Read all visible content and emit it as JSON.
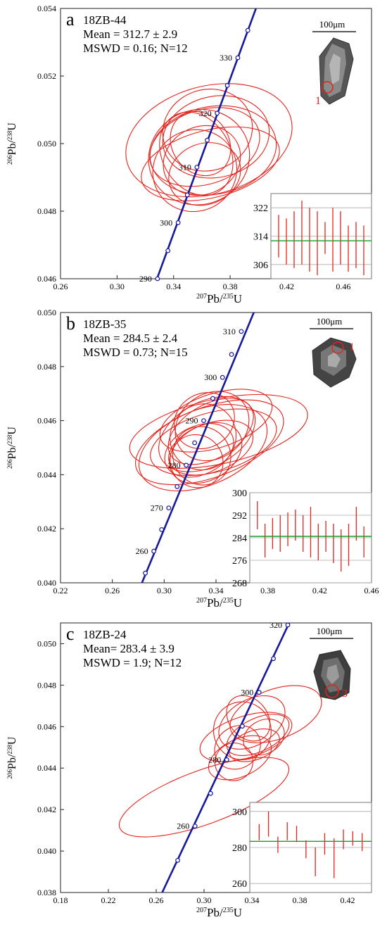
{
  "chart_data": [
    {
      "type": "scatter",
      "panel_letter": "a",
      "sample": "18ZB-44",
      "mean_text": "Mean = 312.7 ± 2.9",
      "mswd_text": "MSWD = 0.16; N=12",
      "xlabel_sup": "207",
      "xlabel_base": "Pb/",
      "xlabel_sup2": "235",
      "xlabel_end": "U",
      "ylabel_sup": "206",
      "ylabel_base": "Pb/",
      "ylabel_sup2": "238",
      "ylabel_end": "U",
      "xlim": [
        0.26,
        0.48
      ],
      "ylim": [
        0.046,
        0.054
      ],
      "xticks": [
        "0.26",
        "0.30",
        "0.34",
        "0.38",
        "0.42",
        "0.46"
      ],
      "xtick_values": [
        0.26,
        0.3,
        0.34,
        0.38,
        0.42,
        0.46
      ],
      "yticks": [
        "0.046",
        "0.048",
        "0.050",
        "0.052",
        "0.054"
      ],
      "ytick_values": [
        0.046,
        0.048,
        0.05,
        0.052,
        0.054
      ],
      "concordia_labels": [
        {
          "age": "290",
          "x": 0.3286,
          "y": 0.046
        },
        {
          "age": "300",
          "x": 0.3432,
          "y": 0.04766
        },
        {
          "age": "310",
          "x": 0.3565,
          "y": 0.0493
        },
        {
          "age": "320",
          "x": 0.3708,
          "y": 0.0509
        },
        {
          "age": "330",
          "x": 0.3854,
          "y": 0.05254
        }
      ],
      "concordia_points": [
        [
          0.3286,
          0.046
        ],
        [
          0.336,
          0.04683
        ],
        [
          0.3432,
          0.04766
        ],
        [
          0.3497,
          0.04848
        ],
        [
          0.3565,
          0.0493
        ],
        [
          0.3638,
          0.0501
        ],
        [
          0.3708,
          0.0509
        ],
        [
          0.378,
          0.05172
        ],
        [
          0.3854,
          0.05254
        ],
        [
          0.3925,
          0.05335
        ]
      ],
      "concordia_line": [
        [
          0.316,
          0.0446
        ],
        [
          0.4,
          0.0542
        ]
      ],
      "ellipses": [
        {
          "cx": 0.362,
          "cy": 0.0499,
          "rx": 0.04,
          "ry": 0.0011,
          "rot": -18
        },
        {
          "cx": 0.365,
          "cy": 0.0501,
          "rx": 0.06,
          "ry": 0.0016,
          "rot": -15
        },
        {
          "cx": 0.358,
          "cy": 0.0496,
          "rx": 0.036,
          "ry": 0.0014,
          "rot": -20
        },
        {
          "cx": 0.36,
          "cy": 0.0495,
          "rx": 0.028,
          "ry": 0.001,
          "rot": -25
        },
        {
          "cx": 0.37,
          "cy": 0.0502,
          "rx": 0.038,
          "ry": 0.0012,
          "rot": -12
        },
        {
          "cx": 0.355,
          "cy": 0.0492,
          "rx": 0.03,
          "ry": 0.0012,
          "rot": -28
        },
        {
          "cx": 0.368,
          "cy": 0.0498,
          "rx": 0.045,
          "ry": 0.0013,
          "rot": -10
        },
        {
          "cx": 0.362,
          "cy": 0.0491,
          "rx": 0.026,
          "ry": 0.0009,
          "rot": -22
        },
        {
          "cx": 0.356,
          "cy": 0.0497,
          "rx": 0.024,
          "ry": 0.0013,
          "rot": -30
        },
        {
          "cx": 0.364,
          "cy": 0.0504,
          "rx": 0.032,
          "ry": 0.0012,
          "rot": -18
        },
        {
          "cx": 0.359,
          "cy": 0.05,
          "rx": 0.02,
          "ry": 0.001,
          "rot": -35
        },
        {
          "cx": 0.366,
          "cy": 0.0494,
          "rx": 0.05,
          "ry": 0.001,
          "rot": -14
        }
      ],
      "scale_bar": "100μm",
      "spot_label": "1",
      "inset": {
        "yticks": [
          "322",
          "314",
          "306"
        ],
        "ytick_values": [
          322,
          314,
          306
        ],
        "ylim": [
          302,
          326
        ],
        "mean": 312.7,
        "bars": [
          [
            308,
            320
          ],
          [
            306,
            319
          ],
          [
            305,
            321
          ],
          [
            306,
            324
          ],
          [
            304,
            322
          ],
          [
            303,
            321
          ],
          [
            309,
            318
          ],
          [
            304,
            322
          ],
          [
            306,
            321
          ],
          [
            304,
            317
          ],
          [
            305,
            318
          ],
          [
            303,
            317
          ]
        ]
      }
    },
    {
      "type": "scatter",
      "panel_letter": "b",
      "sample": "18ZB-35",
      "mean_text": "Mean = 284.5 ± 2.4",
      "mswd_text": "MSWD = 0.73; N=15",
      "xlabel_sup": "207",
      "xlabel_base": "Pb/",
      "xlabel_sup2": "235",
      "xlabel_end": "U",
      "ylabel_sup": "206",
      "ylabel_base": "Pb/",
      "ylabel_sup2": "238",
      "ylabel_end": "U",
      "xlim": [
        0.22,
        0.46
      ],
      "ylim": [
        0.04,
        0.05
      ],
      "xticks": [
        "0.22",
        "0.26",
        "0.30",
        "0.34",
        "0.38",
        "0.42",
        "0.46"
      ],
      "xtick_values": [
        0.22,
        0.26,
        0.3,
        0.34,
        0.38,
        0.42,
        0.46
      ],
      "yticks": [
        "0.040",
        "0.042",
        "0.044",
        "0.046",
        "0.048",
        "0.050"
      ],
      "ytick_values": [
        0.04,
        0.042,
        0.044,
        0.046,
        0.048,
        0.05
      ],
      "concordia_labels": [
        {
          "age": "260",
          "x": 0.292,
          "y": 0.04117
        },
        {
          "age": "270",
          "x": 0.3035,
          "y": 0.04277
        },
        {
          "age": "280",
          "x": 0.317,
          "y": 0.04435
        },
        {
          "age": "290",
          "x": 0.3305,
          "y": 0.046
        },
        {
          "age": "300",
          "x": 0.345,
          "y": 0.0476
        },
        {
          "age": "310",
          "x": 0.3595,
          "y": 0.0493
        }
      ],
      "concordia_points": [
        [
          0.2855,
          0.04036
        ],
        [
          0.292,
          0.04117
        ],
        [
          0.298,
          0.04197
        ],
        [
          0.3035,
          0.04277
        ],
        [
          0.31,
          0.04356
        ],
        [
          0.317,
          0.04435
        ],
        [
          0.3235,
          0.04518
        ],
        [
          0.3305,
          0.046
        ],
        [
          0.3375,
          0.04682
        ],
        [
          0.345,
          0.0476
        ],
        [
          0.352,
          0.04845
        ],
        [
          0.3595,
          0.0493
        ]
      ],
      "concordia_line": [
        [
          0.282,
          0.0399
        ],
        [
          0.37,
          0.0501
        ]
      ],
      "ellipses": [
        {
          "cx": 0.335,
          "cy": 0.0452,
          "rx": 0.06,
          "ry": 0.0013,
          "rot": -20
        },
        {
          "cx": 0.33,
          "cy": 0.045,
          "rx": 0.052,
          "ry": 0.0014,
          "rot": -22
        },
        {
          "cx": 0.333,
          "cy": 0.0455,
          "rx": 0.04,
          "ry": 0.0012,
          "rot": -28
        },
        {
          "cx": 0.336,
          "cy": 0.0456,
          "rx": 0.036,
          "ry": 0.001,
          "rot": -30
        },
        {
          "cx": 0.332,
          "cy": 0.0448,
          "rx": 0.03,
          "ry": 0.001,
          "rot": -30
        },
        {
          "cx": 0.337,
          "cy": 0.0458,
          "rx": 0.03,
          "ry": 0.0012,
          "rot": -35
        },
        {
          "cx": 0.329,
          "cy": 0.0447,
          "rx": 0.022,
          "ry": 0.0011,
          "rot": -40
        },
        {
          "cx": 0.34,
          "cy": 0.046,
          "rx": 0.045,
          "ry": 0.001,
          "rot": -18
        },
        {
          "cx": 0.33,
          "cy": 0.0454,
          "rx": 0.026,
          "ry": 0.0012,
          "rot": -45
        },
        {
          "cx": 0.338,
          "cy": 0.0452,
          "rx": 0.05,
          "ry": 0.0011,
          "rot": -15
        },
        {
          "cx": 0.325,
          "cy": 0.0445,
          "rx": 0.02,
          "ry": 0.001,
          "rot": -45
        },
        {
          "cx": 0.342,
          "cy": 0.0456,
          "rx": 0.07,
          "ry": 0.0012,
          "rot": -12
        },
        {
          "cx": 0.331,
          "cy": 0.046,
          "rx": 0.024,
          "ry": 0.001,
          "rot": -30
        },
        {
          "cx": 0.336,
          "cy": 0.045,
          "rx": 0.034,
          "ry": 0.0009,
          "rot": -20
        },
        {
          "cx": 0.327,
          "cy": 0.0449,
          "rx": 0.028,
          "ry": 0.0009,
          "rot": -25
        }
      ],
      "scale_bar": "100μm",
      "spot_label": "1",
      "inset": {
        "yticks": [
          "300",
          "292",
          "284",
          "276",
          "268"
        ],
        "ytick_values": [
          300,
          292,
          284,
          276,
          268
        ],
        "ylim": [
          268,
          300
        ],
        "mean": 284.5,
        "bars": [
          [
            287,
            297
          ],
          [
            277,
            289
          ],
          [
            280,
            291
          ],
          [
            279,
            292
          ],
          [
            281,
            293
          ],
          [
            283,
            294
          ],
          [
            279,
            292
          ],
          [
            277,
            295
          ],
          [
            276,
            289
          ],
          [
            279,
            290
          ],
          [
            275,
            289
          ],
          [
            272,
            287
          ],
          [
            274,
            289
          ],
          [
            283,
            295
          ],
          [
            277,
            288
          ]
        ]
      }
    },
    {
      "type": "scatter",
      "panel_letter": "c",
      "sample": "18ZB-24",
      "mean_text": "Mean= 283.4 ± 3.9",
      "mswd_text": "MSWD = 1.9; N=12",
      "xlabel_sup": "207",
      "xlabel_base": "Pb/",
      "xlabel_sup2": "235",
      "xlabel_end": "U",
      "ylabel_sup": "206",
      "ylabel_base": "Pb/",
      "ylabel_sup2": "238",
      "ylabel_end": "U",
      "xlim": [
        0.18,
        0.44
      ],
      "ylim": [
        0.038,
        0.051
      ],
      "xticks": [
        "0.18",
        "0.22",
        "0.26",
        "0.30",
        "0.34",
        "0.38",
        "0.42"
      ],
      "xtick_values": [
        0.18,
        0.22,
        0.26,
        0.3,
        0.34,
        0.38,
        0.42
      ],
      "yticks": [
        "0.038",
        "0.040",
        "0.042",
        "0.044",
        "0.046",
        "0.048",
        "0.050"
      ],
      "ytick_values": [
        0.038,
        0.04,
        0.042,
        0.044,
        0.046,
        0.048,
        0.05
      ],
      "concordia_labels": [
        {
          "age": "260",
          "x": 0.2925,
          "y": 0.0412
        },
        {
          "age": "280",
          "x": 0.319,
          "y": 0.0444
        },
        {
          "age": "300",
          "x": 0.346,
          "y": 0.04765
        },
        {
          "age": "320",
          "x": 0.37,
          "y": 0.0509
        }
      ],
      "concordia_points": [
        [
          0.278,
          0.03955
        ],
        [
          0.2925,
          0.0412
        ],
        [
          0.3055,
          0.04278
        ],
        [
          0.319,
          0.0444
        ],
        [
          0.332,
          0.04602
        ],
        [
          0.346,
          0.04765
        ],
        [
          0.358,
          0.04928
        ],
        [
          0.37,
          0.0509
        ]
      ],
      "concordia_line": [
        [
          0.265,
          0.038
        ],
        [
          0.372,
          0.0511
        ]
      ],
      "ellipses": [
        {
          "cx": 0.3,
          "cy": 0.0426,
          "rx": 0.075,
          "ry": 0.0013,
          "rot": -20
        },
        {
          "cx": 0.335,
          "cy": 0.0455,
          "rx": 0.04,
          "ry": 0.001,
          "rot": -18
        },
        {
          "cx": 0.332,
          "cy": 0.0458,
          "rx": 0.024,
          "ry": 0.0014,
          "rot": -35
        },
        {
          "cx": 0.34,
          "cy": 0.0462,
          "rx": 0.03,
          "ry": 0.0011,
          "rot": -30
        },
        {
          "cx": 0.328,
          "cy": 0.045,
          "rx": 0.02,
          "ry": 0.001,
          "rot": -35
        },
        {
          "cx": 0.345,
          "cy": 0.0456,
          "rx": 0.028,
          "ry": 0.0008,
          "rot": -25
        },
        {
          "cx": 0.35,
          "cy": 0.0455,
          "rx": 0.018,
          "ry": 0.0008,
          "rot": -30
        },
        {
          "cx": 0.337,
          "cy": 0.0464,
          "rx": 0.016,
          "ry": 0.0012,
          "rot": -40
        },
        {
          "cx": 0.36,
          "cy": 0.0466,
          "rx": 0.04,
          "ry": 0.0012,
          "rot": -20
        },
        {
          "cx": 0.325,
          "cy": 0.0443,
          "rx": 0.016,
          "ry": 0.0009,
          "rot": -35
        },
        {
          "cx": 0.33,
          "cy": 0.0445,
          "rx": 0.028,
          "ry": 0.0009,
          "rot": -25
        },
        {
          "cx": 0.342,
          "cy": 0.0451,
          "rx": 0.022,
          "ry": 0.0007,
          "rot": -20
        }
      ],
      "scale_bar": "100μm",
      "spot_label": "3",
      "inset": {
        "yticks": [
          "300",
          "280",
          "260"
        ],
        "ytick_values": [
          300,
          280,
          260
        ],
        "ylim": [
          255,
          305
        ],
        "mean": 283.4,
        "bars": [
          [
            284,
            293
          ],
          [
            286,
            300
          ],
          [
            277,
            286
          ],
          [
            284,
            294
          ],
          [
            283,
            292
          ],
          [
            274,
            284
          ],
          [
            264,
            280
          ],
          [
            276,
            288
          ],
          [
            263,
            285
          ],
          [
            279,
            290
          ],
          [
            281,
            289
          ],
          [
            278,
            288
          ]
        ]
      }
    }
  ],
  "colors": {
    "ellipse": "#e3231c",
    "concordia": "#16199a",
    "mean_line": "#1a9a2a",
    "inset_bar": "#e3231c"
  }
}
